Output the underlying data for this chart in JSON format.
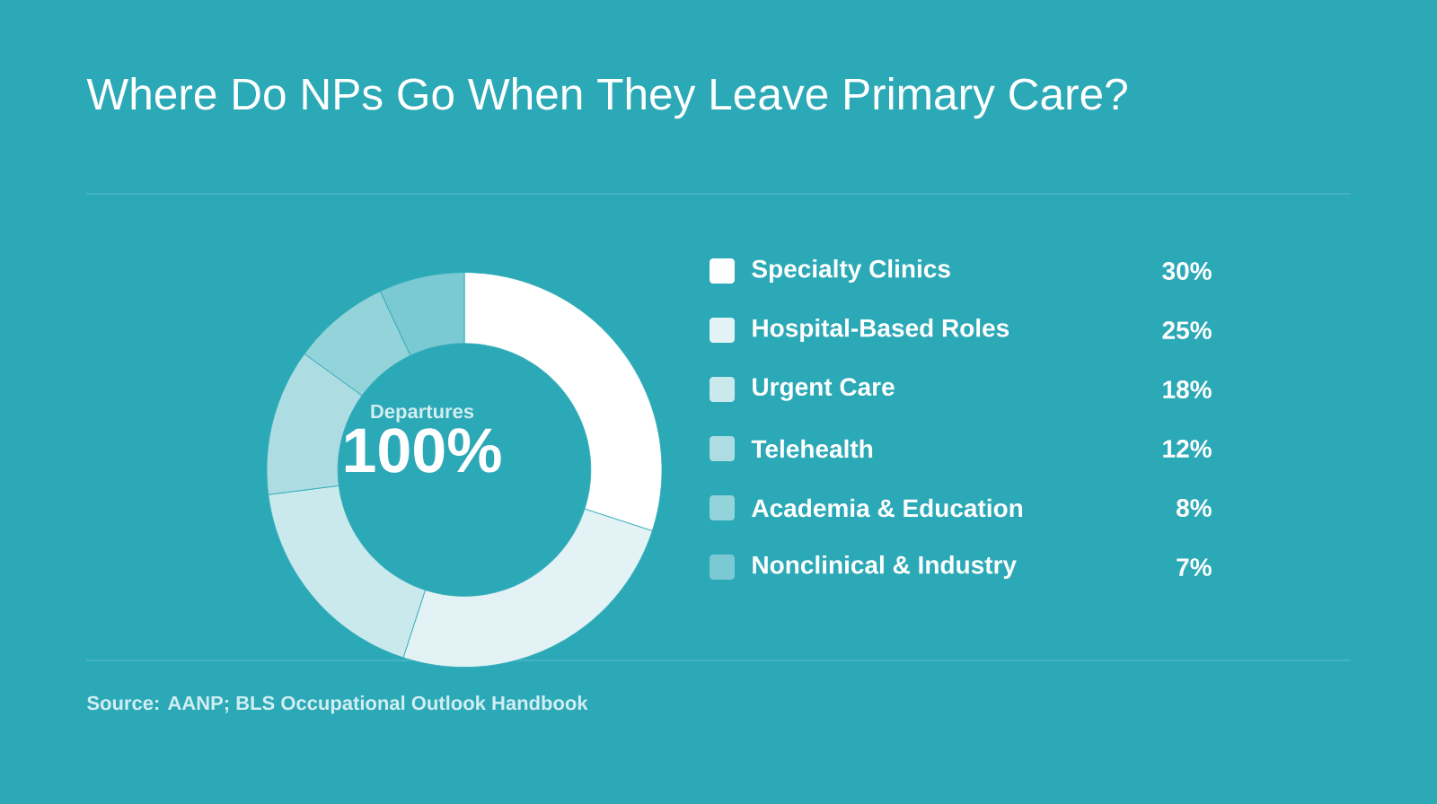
{
  "chart_data": {
    "type": "donut",
    "title": "Where Do NPs Go When They Leave Primary Care?",
    "categories": [
      "Specialty Clinics",
      "Hospital-Based Roles",
      "Urgent Care",
      "Telehealth",
      "Academia & Education",
      "Nonclinical & Industry"
    ],
    "values": [
      30,
      25,
      18,
      12,
      8,
      7
    ],
    "colors": [
      "#ffffff",
      "#e3f2f5",
      "#c9e9ed",
      "#addde2",
      "#93d3da",
      "#7bc9d2"
    ],
    "value_labels": [
      "30%",
      "25%",
      "18%",
      "12%",
      "8%",
      "7%"
    ],
    "legend": "right",
    "annotations": [
      "Departures",
      "100%",
      "Source: AANP; BLS Occupational Outlook Handbook"
    ]
  }
}
